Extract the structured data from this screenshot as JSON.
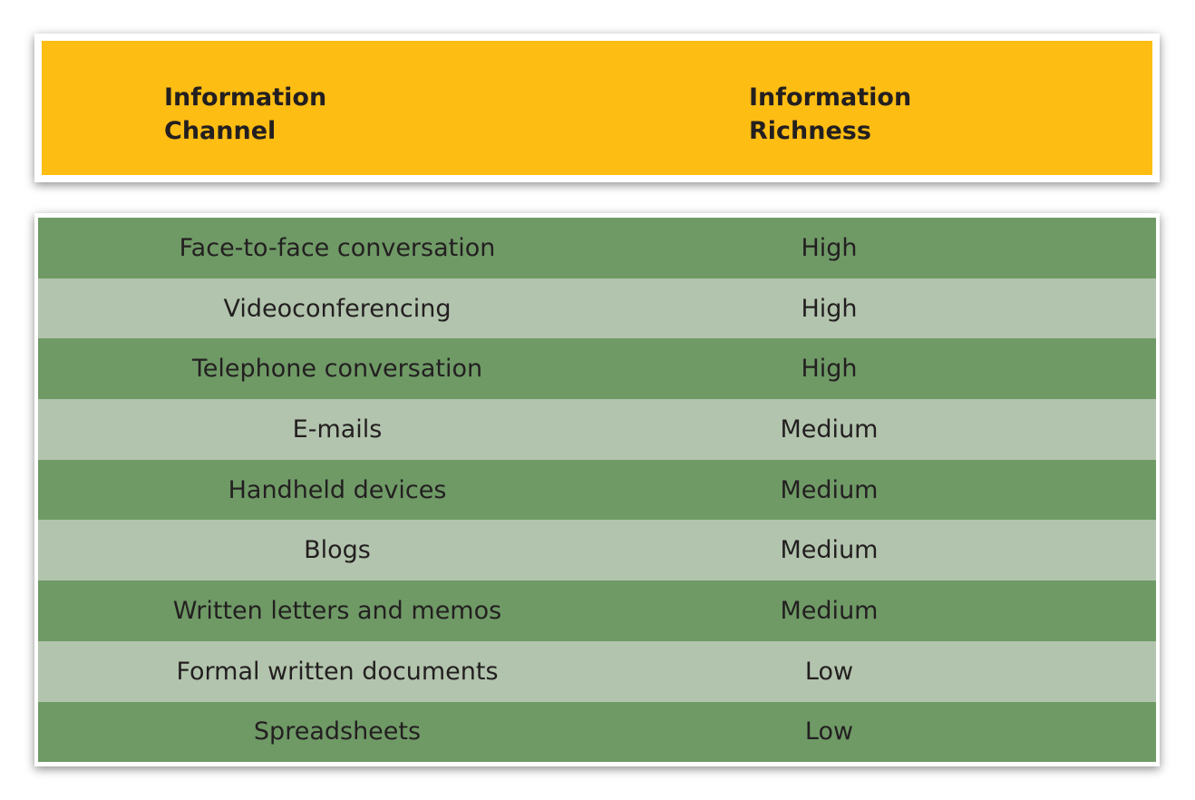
{
  "header": {
    "channel_line1": "Information",
    "channel_line2": "Channel",
    "richness_line1": "Information",
    "richness_line2": "Richness"
  },
  "colors": {
    "header_bg": "#FDBD13",
    "row_dark": "#6F9A66",
    "row_light": "#B2C4AD"
  },
  "rows": [
    {
      "channel": "Face-to-face conversation",
      "richness": "High"
    },
    {
      "channel": "Videoconferencing",
      "richness": "High"
    },
    {
      "channel": "Telephone conversation",
      "richness": "High"
    },
    {
      "channel": "E-mails",
      "richness": "Medium"
    },
    {
      "channel": "Handheld devices",
      "richness": "Medium"
    },
    {
      "channel": "Blogs",
      "richness": "Medium"
    },
    {
      "channel": "Written letters and memos",
      "richness": "Medium"
    },
    {
      "channel": "Formal written documents",
      "richness": "Low"
    },
    {
      "channel": "Spreadsheets",
      "richness": "Low"
    }
  ]
}
